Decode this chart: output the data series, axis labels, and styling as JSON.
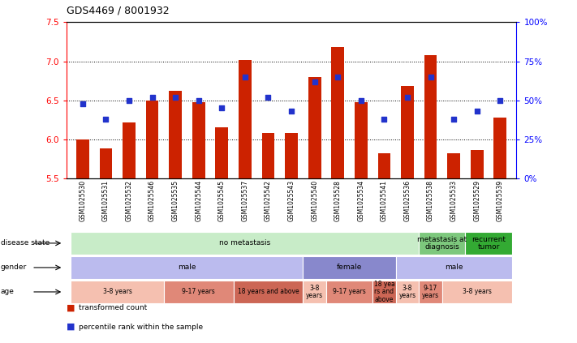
{
  "title": "GDS4469 / 8001932",
  "samples": [
    "GSM1025530",
    "GSM1025531",
    "GSM1025532",
    "GSM1025546",
    "GSM1025535",
    "GSM1025544",
    "GSM1025545",
    "GSM1025537",
    "GSM1025542",
    "GSM1025543",
    "GSM1025540",
    "GSM1025528",
    "GSM1025534",
    "GSM1025541",
    "GSM1025536",
    "GSM1025538",
    "GSM1025533",
    "GSM1025529",
    "GSM1025539"
  ],
  "bar_values": [
    6.0,
    5.88,
    6.22,
    6.5,
    6.62,
    6.48,
    6.15,
    7.02,
    6.08,
    6.08,
    6.8,
    7.18,
    6.48,
    5.82,
    6.68,
    7.08,
    5.82,
    5.86,
    6.28
  ],
  "dot_values": [
    48,
    38,
    50,
    52,
    52,
    50,
    45,
    65,
    52,
    43,
    62,
    65,
    50,
    38,
    52,
    65,
    38,
    43,
    50
  ],
  "y_min": 5.5,
  "y_max": 7.5,
  "bar_color": "#cc2200",
  "dot_color": "#2233cc",
  "bar_width": 0.55,
  "disease_state_groups": [
    {
      "label": "no metastasis",
      "start": 0,
      "end": 15,
      "color": "#c8ecc8"
    },
    {
      "label": "metastasis at\ndiagnosis",
      "start": 15,
      "end": 17,
      "color": "#7dc87d"
    },
    {
      "label": "recurrent\ntumor",
      "start": 17,
      "end": 19,
      "color": "#33aa33"
    }
  ],
  "gender_groups": [
    {
      "label": "male",
      "start": 0,
      "end": 10,
      "color": "#bbbbee"
    },
    {
      "label": "female",
      "start": 10,
      "end": 14,
      "color": "#8888cc"
    },
    {
      "label": "male",
      "start": 14,
      "end": 19,
      "color": "#bbbbee"
    }
  ],
  "age_groups": [
    {
      "label": "3-8 years",
      "start": 0,
      "end": 4,
      "color": "#f5c0b0"
    },
    {
      "label": "9-17 years",
      "start": 4,
      "end": 7,
      "color": "#e08878"
    },
    {
      "label": "18 years and above",
      "start": 7,
      "end": 10,
      "color": "#cc6655"
    },
    {
      "label": "3-8\nyears",
      "start": 10,
      "end": 11,
      "color": "#f5c0b0"
    },
    {
      "label": "9-17 years",
      "start": 11,
      "end": 13,
      "color": "#e08878"
    },
    {
      "label": "18 yea\nrs and\nabove",
      "start": 13,
      "end": 14,
      "color": "#cc6655"
    },
    {
      "label": "3-8\nyears",
      "start": 14,
      "end": 15,
      "color": "#f5c0b0"
    },
    {
      "label": "9-17\nyears",
      "start": 15,
      "end": 16,
      "color": "#e08878"
    },
    {
      "label": "3-8 years",
      "start": 16,
      "end": 19,
      "color": "#f5c0b0"
    }
  ],
  "row_labels": [
    "disease state",
    "gender",
    "age"
  ],
  "yticks_left": [
    5.5,
    6.0,
    6.5,
    7.0,
    7.5
  ],
  "yticks_right": [
    0,
    25,
    50,
    75,
    100
  ],
  "right_axis_labels": [
    "0%",
    "25%",
    "50%",
    "75%",
    "100%"
  ]
}
